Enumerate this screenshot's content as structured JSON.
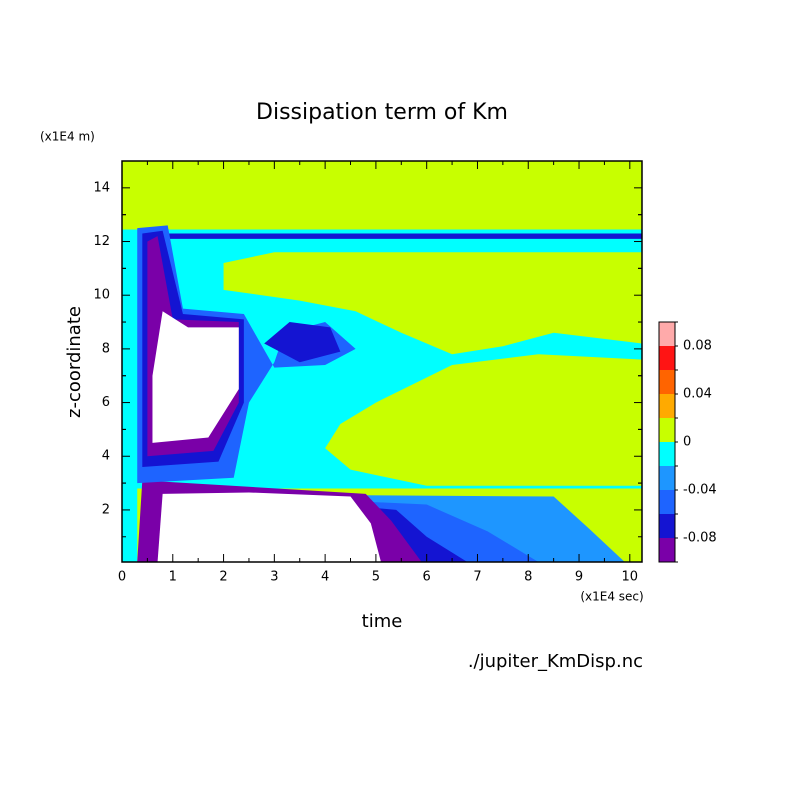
{
  "chart_data": {
    "type": "contour",
    "title": "Dissipation term of Km",
    "x_label": "time",
    "y_label": "z-coordinate",
    "x_unit": "(x1E4 sec)",
    "y_unit": "(x1E4 m)",
    "footer": "./jupiter_KmDisp.nc",
    "xlim": [
      0,
      10.24
    ],
    "ylim": [
      0.06,
      15
    ],
    "xticks": [
      0,
      1,
      2,
      3,
      4,
      5,
      6,
      7,
      8,
      9,
      10
    ],
    "yticks": [
      2,
      4,
      6,
      8,
      10,
      12,
      14
    ],
    "levels": [
      -0.1,
      -0.08,
      -0.06,
      -0.04,
      -0.02,
      0,
      0.02,
      0.04,
      0.06,
      0.08,
      0.1
    ],
    "colors": [
      "#7a00a8",
      "#1414d2",
      "#1e64ff",
      "#1e96ff",
      "#00ffff",
      "#c8ff00",
      "#ffaa00",
      "#ff6400",
      "#ff1414",
      "#ffaaaa"
    ],
    "colorbar_ticks": [
      -0.08,
      -0.04,
      0,
      0.04,
      0.08
    ],
    "background_value": 0.01,
    "regions": [
      {
        "value": -0.01,
        "x": [
          0,
          0.3,
          0.3,
          10.24,
          10.24,
          0
        ],
        "y": [
          0.06,
          0.06,
          2.8,
          2.8,
          12.45,
          12.45
        ]
      },
      {
        "value": -0.03,
        "x": [
          0.4,
          9.9,
          9.2,
          8.5,
          0.4
        ],
        "y": [
          0.06,
          0.06,
          1.3,
          2.5,
          2.6
        ]
      },
      {
        "value": -0.05,
        "x": [
          0.4,
          8.2,
          7.2,
          6.0,
          0.4
        ],
        "y": [
          0.06,
          0.06,
          1.2,
          2.2,
          2.7
        ]
      },
      {
        "value": -0.07,
        "x": [
          0.4,
          6.8,
          6.0,
          5.4,
          0.4
        ],
        "y": [
          0.06,
          0.06,
          1.0,
          2.0,
          2.9
        ]
      },
      {
        "value": -0.09,
        "x": [
          0.3,
          5.9,
          5.3,
          4.8,
          0.4
        ],
        "y": [
          0.06,
          0.06,
          1.6,
          2.6,
          3.1
        ]
      },
      {
        "value": -0.12,
        "x": [
          0.7,
          5.1,
          4.9,
          4.5,
          2.5,
          0.8
        ],
        "y": [
          0.06,
          0.06,
          1.5,
          2.5,
          2.65,
          2.6
        ]
      },
      {
        "value": 0.01,
        "x": [
          3.0,
          10.24,
          10.24,
          8.5,
          7.5,
          6.5,
          5.5,
          4.6,
          3.5,
          2.0,
          2.0
        ],
        "y": [
          11.6,
          11.6,
          8.2,
          8.6,
          8.1,
          7.8,
          8.6,
          9.4,
          9.8,
          10.2,
          11.2
        ]
      },
      {
        "value": 0.01,
        "x": [
          4.5,
          6,
          10.24,
          10.24,
          8.2,
          6.5,
          5.0,
          4.3,
          4.0
        ],
        "y": [
          3.5,
          2.9,
          2.9,
          7.6,
          7.8,
          7.4,
          6.0,
          5.2,
          4.3
        ]
      },
      {
        "value": -0.07,
        "x": [
          0.5,
          10.24,
          10.24,
          0.5
        ],
        "y": [
          12.1,
          12.1,
          12.3,
          12.3
        ]
      },
      {
        "value": -0.05,
        "x": [
          0.3,
          2.2,
          2.5,
          3,
          3.2,
          4.0,
          4.6,
          4,
          3,
          2.4,
          1.2,
          0.9,
          0.3
        ],
        "y": [
          3.0,
          3.2,
          6,
          7.5,
          8.6,
          9.0,
          8.0,
          7.4,
          7.3,
          9.3,
          9.5,
          12.6,
          12.5
        ]
      },
      {
        "value": -0.07,
        "x": [
          0.4,
          1.9,
          2.4,
          2.4,
          1.2,
          0.8,
          0.4
        ],
        "y": [
          3.6,
          3.8,
          6,
          9.1,
          9.3,
          12.4,
          12.3
        ]
      },
      {
        "value": -0.07,
        "x": [
          2.8,
          3.3,
          4.1,
          4.3,
          3.5
        ],
        "y": [
          8.2,
          9,
          8.8,
          7.9,
          7.5
        ]
      },
      {
        "value": -0.09,
        "x": [
          0.5,
          1.8,
          2.3,
          2.3,
          1,
          0.7,
          0.5
        ],
        "y": [
          4,
          4.2,
          6,
          9,
          9.1,
          12.2,
          12
        ]
      },
      {
        "value": -0.12,
        "x": [
          0.6,
          1.7,
          2.3,
          2.3,
          1.3,
          0.8,
          0.6
        ],
        "y": [
          4.5,
          4.7,
          6.5,
          8.8,
          8.8,
          9.4,
          7
        ]
      }
    ]
  }
}
